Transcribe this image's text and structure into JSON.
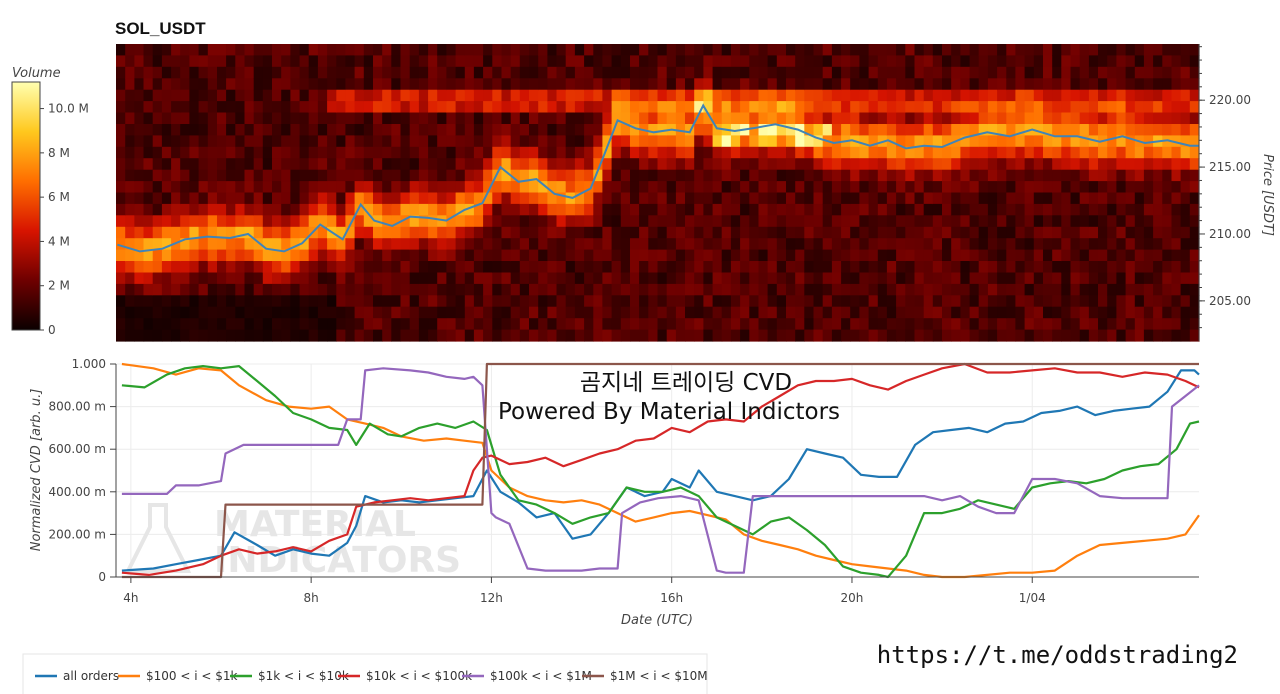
{
  "colors": {
    "heat_low": "#0b0000",
    "heat_high": "#ffffb0",
    "price_line": "#3f84b8",
    "all_orders": "#1f77b4",
    "s100_1k": "#ff7f0e",
    "s1k_10k": "#2ca02c",
    "s10k_100k": "#d62728",
    "s100k_1m": "#9467bd",
    "s1m_10m": "#8c564b"
  },
  "link": "https://t.me/oddstrading2",
  "chart_data": [
    {
      "type": "heatmap",
      "title": "SOL_USDT",
      "colorbar": {
        "label": "Volume",
        "ticks": [
          "10.0 M",
          "8 M",
          "6 M",
          "4 M",
          "2 M",
          "0"
        ],
        "tick_values": [
          10,
          8,
          6,
          4,
          2,
          0
        ],
        "range": [
          0,
          11.2
        ]
      },
      "ylabel": "Price [USDT]",
      "yticks": [
        "220.00",
        "215.00",
        "210.00",
        "205.00"
      ],
      "ytick_values": [
        220,
        215,
        210,
        205
      ],
      "ylim": [
        202,
        224.2
      ],
      "x_start_hour": 3.67,
      "x_end_hour": 27.7,
      "price_line": {
        "hours": [
          3.7,
          4.2,
          4.7,
          5.2,
          5.7,
          6.2,
          6.6,
          7.0,
          7.4,
          7.8,
          8.2,
          8.7,
          9.1,
          9.4,
          9.8,
          10.2,
          10.6,
          11.0,
          11.4,
          11.8,
          12.2,
          12.6,
          13.0,
          13.4,
          13.8,
          14.2,
          14.5,
          14.8,
          15.2,
          15.6,
          16.0,
          16.4,
          16.7,
          17.0,
          17.4,
          17.8,
          18.3,
          18.8,
          19.2,
          19.6,
          20.0,
          20.4,
          20.8,
          21.2,
          21.6,
          22.0,
          22.5,
          23.0,
          23.5,
          24.0,
          24.5,
          25.0,
          25.5,
          26.0,
          26.5,
          27.0,
          27.5,
          27.7
        ],
        "prices": [
          209.2,
          208.7,
          208.9,
          209.6,
          209.8,
          209.7,
          210.0,
          208.9,
          208.7,
          209.3,
          210.7,
          209.6,
          212.2,
          211.0,
          210.6,
          211.3,
          211.2,
          211.0,
          211.8,
          212.3,
          215.0,
          213.9,
          214.1,
          213.0,
          212.7,
          213.4,
          215.9,
          218.5,
          217.9,
          217.6,
          217.8,
          217.6,
          219.6,
          217.9,
          217.7,
          217.9,
          218.2,
          217.8,
          217.2,
          216.8,
          217.0,
          216.6,
          217.0,
          216.4,
          216.6,
          216.5,
          217.2,
          217.6,
          217.3,
          217.8,
          217.3,
          217.3,
          216.9,
          217.3,
          216.8,
          217.0,
          216.6,
          216.6
        ]
      }
    },
    {
      "type": "line",
      "ylabel": "Normalized CVD [arb. u.]",
      "xlabel": "Date (UTC)",
      "yticks": [
        "1.000",
        "800.00 m",
        "600.00 m",
        "400.00 m",
        "200.00 m",
        "0"
      ],
      "ytick_values": [
        1.0,
        0.8,
        0.6,
        0.4,
        0.2,
        0.0
      ],
      "xticks": [
        "4h",
        "8h",
        "12h",
        "16h",
        "20h",
        "1/04"
      ],
      "xtick_hours": [
        4,
        8,
        12,
        16,
        20,
        24
      ],
      "ylim": [
        0,
        1.0
      ],
      "xlim": [
        3.67,
        27.7
      ],
      "overlay_title": "곰지네 트레이딩 CVD",
      "overlay_subtitle": "Powered By Material Indictors",
      "watermark": [
        "MATERIAL",
        "INDICATORS"
      ],
      "series": [
        {
          "name": "all orders",
          "key": "all_orders",
          "x": [
            3.8,
            4.5,
            5.0,
            5.5,
            6.0,
            6.3,
            6.8,
            7.2,
            7.6,
            8.0,
            8.4,
            8.8,
            9.0,
            9.2,
            9.6,
            10.0,
            10.4,
            10.8,
            11.2,
            11.6,
            11.9,
            12.2,
            12.6,
            13.0,
            13.4,
            13.8,
            14.2,
            14.6,
            15.0,
            15.4,
            15.8,
            16.0,
            16.4,
            16.6,
            17.0,
            17.4,
            17.8,
            18.2,
            18.6,
            19.0,
            19.4,
            19.8,
            20.2,
            20.6,
            21.0,
            21.4,
            21.8,
            22.2,
            22.6,
            23.0,
            23.4,
            23.8,
            24.2,
            24.6,
            25.0,
            25.4,
            25.8,
            26.2,
            26.6,
            27.0,
            27.3,
            27.6,
            27.7
          ],
          "y": [
            0.03,
            0.04,
            0.06,
            0.08,
            0.1,
            0.21,
            0.15,
            0.1,
            0.13,
            0.11,
            0.1,
            0.16,
            0.24,
            0.38,
            0.35,
            0.36,
            0.35,
            0.36,
            0.37,
            0.38,
            0.5,
            0.4,
            0.35,
            0.28,
            0.3,
            0.18,
            0.2,
            0.3,
            0.42,
            0.38,
            0.4,
            0.46,
            0.42,
            0.5,
            0.4,
            0.38,
            0.36,
            0.38,
            0.46,
            0.6,
            0.58,
            0.56,
            0.48,
            0.47,
            0.47,
            0.62,
            0.68,
            0.69,
            0.7,
            0.68,
            0.72,
            0.73,
            0.77,
            0.78,
            0.8,
            0.76,
            0.78,
            0.79,
            0.8,
            0.87,
            0.97,
            0.97,
            0.95
          ]
        },
        {
          "name": "$100 < i < $1k",
          "key": "s100_1k",
          "x": [
            3.8,
            4.5,
            5.0,
            5.5,
            6.0,
            6.4,
            7.0,
            7.5,
            8.0,
            8.4,
            8.8,
            9.2,
            9.6,
            10.0,
            10.5,
            11.0,
            11.4,
            11.8,
            12.0,
            12.4,
            12.8,
            13.2,
            13.6,
            14.0,
            14.4,
            14.8,
            15.2,
            15.6,
            16.0,
            16.4,
            16.8,
            17.2,
            17.6,
            18.0,
            18.4,
            18.8,
            19.2,
            19.6,
            20.0,
            20.4,
            20.8,
            21.2,
            21.6,
            22.0,
            22.5,
            23.0,
            23.5,
            24.0,
            24.5,
            25.0,
            25.5,
            26.0,
            26.5,
            27.0,
            27.4,
            27.7
          ],
          "y": [
            1.0,
            0.98,
            0.95,
            0.98,
            0.97,
            0.9,
            0.83,
            0.8,
            0.79,
            0.8,
            0.74,
            0.72,
            0.7,
            0.66,
            0.64,
            0.65,
            0.64,
            0.63,
            0.5,
            0.42,
            0.38,
            0.36,
            0.35,
            0.36,
            0.34,
            0.3,
            0.26,
            0.28,
            0.3,
            0.31,
            0.29,
            0.27,
            0.2,
            0.17,
            0.15,
            0.13,
            0.1,
            0.08,
            0.06,
            0.05,
            0.04,
            0.03,
            0.01,
            0.0,
            0.0,
            0.01,
            0.02,
            0.02,
            0.03,
            0.1,
            0.15,
            0.16,
            0.17,
            0.18,
            0.2,
            0.29
          ]
        },
        {
          "name": "$1k < i < $10k",
          "key": "s1k_10k",
          "x": [
            3.8,
            4.3,
            4.8,
            5.2,
            5.6,
            6.0,
            6.4,
            6.8,
            7.2,
            7.6,
            8.0,
            8.4,
            8.8,
            9.0,
            9.3,
            9.7,
            10.0,
            10.4,
            10.8,
            11.2,
            11.6,
            11.9,
            12.2,
            12.6,
            13.0,
            13.4,
            13.8,
            14.2,
            14.6,
            15.0,
            15.4,
            15.8,
            16.2,
            16.6,
            17.0,
            17.4,
            17.8,
            18.2,
            18.6,
            19.0,
            19.4,
            19.8,
            20.2,
            20.6,
            20.8,
            21.2,
            21.6,
            22.0,
            22.4,
            22.8,
            23.2,
            23.6,
            24.0,
            24.4,
            24.8,
            25.2,
            25.6,
            26.0,
            26.4,
            26.8,
            27.2,
            27.5,
            27.7
          ],
          "y": [
            0.9,
            0.89,
            0.95,
            0.98,
            0.99,
            0.98,
            0.99,
            0.92,
            0.85,
            0.77,
            0.74,
            0.7,
            0.69,
            0.62,
            0.72,
            0.67,
            0.66,
            0.7,
            0.72,
            0.7,
            0.73,
            0.69,
            0.48,
            0.36,
            0.34,
            0.3,
            0.25,
            0.28,
            0.3,
            0.42,
            0.4,
            0.4,
            0.42,
            0.38,
            0.28,
            0.24,
            0.2,
            0.26,
            0.28,
            0.22,
            0.15,
            0.05,
            0.02,
            0.01,
            0.0,
            0.1,
            0.3,
            0.3,
            0.32,
            0.36,
            0.34,
            0.32,
            0.42,
            0.44,
            0.45,
            0.44,
            0.46,
            0.5,
            0.52,
            0.53,
            0.6,
            0.72,
            0.73
          ]
        },
        {
          "name": "$10k < i < $100k",
          "key": "s10k_100k",
          "x": [
            3.8,
            4.4,
            5.0,
            5.6,
            6.0,
            6.4,
            6.8,
            7.2,
            7.6,
            8.0,
            8.4,
            8.8,
            9.0,
            9.4,
            9.8,
            10.2,
            10.6,
            11.0,
            11.4,
            11.6,
            11.8,
            12.0,
            12.4,
            12.8,
            13.2,
            13.6,
            14.0,
            14.4,
            14.8,
            15.2,
            15.6,
            16.0,
            16.4,
            16.8,
            17.2,
            17.6,
            18.0,
            18.4,
            18.8,
            19.2,
            19.6,
            20.0,
            20.4,
            20.8,
            21.2,
            21.6,
            22.0,
            22.5,
            23.0,
            23.5,
            24.0,
            24.5,
            25.0,
            25.5,
            26.0,
            26.5,
            27.0,
            27.4,
            27.7
          ],
          "y": [
            0.02,
            0.01,
            0.03,
            0.06,
            0.1,
            0.13,
            0.11,
            0.12,
            0.14,
            0.12,
            0.17,
            0.2,
            0.33,
            0.35,
            0.36,
            0.37,
            0.36,
            0.37,
            0.38,
            0.5,
            0.56,
            0.57,
            0.53,
            0.54,
            0.56,
            0.52,
            0.55,
            0.58,
            0.6,
            0.64,
            0.65,
            0.7,
            0.68,
            0.73,
            0.74,
            0.73,
            0.8,
            0.85,
            0.9,
            0.92,
            0.92,
            0.93,
            0.9,
            0.88,
            0.92,
            0.95,
            0.98,
            1.0,
            0.96,
            0.96,
            0.97,
            0.98,
            0.96,
            0.96,
            0.94,
            0.96,
            0.95,
            0.92,
            0.89
          ]
        },
        {
          "name": "$100k < i < $1M",
          "key": "s100k_1m",
          "x": [
            3.8,
            4.8,
            5.0,
            5.5,
            6.0,
            6.1,
            6.5,
            7.0,
            7.8,
            8.6,
            8.8,
            9.1,
            9.2,
            9.6,
            10.2,
            10.6,
            11.0,
            11.4,
            11.6,
            11.8,
            12.0,
            12.1,
            12.4,
            12.8,
            13.2,
            13.6,
            14.0,
            14.4,
            14.8,
            14.9,
            15.3,
            15.7,
            16.2,
            16.6,
            17.0,
            17.2,
            17.6,
            17.8,
            18.2,
            18.6,
            19.0,
            19.4,
            20.0,
            20.8,
            21.2,
            21.6,
            22.0,
            22.4,
            22.8,
            23.2,
            23.6,
            24.0,
            24.5,
            25.0,
            25.5,
            26.0,
            26.5,
            27.0,
            27.1,
            27.4,
            27.7
          ],
          "y": [
            0.39,
            0.39,
            0.43,
            0.43,
            0.45,
            0.58,
            0.62,
            0.62,
            0.62,
            0.62,
            0.74,
            0.74,
            0.97,
            0.98,
            0.97,
            0.96,
            0.94,
            0.93,
            0.94,
            0.9,
            0.3,
            0.28,
            0.25,
            0.04,
            0.03,
            0.03,
            0.03,
            0.04,
            0.04,
            0.3,
            0.35,
            0.37,
            0.38,
            0.36,
            0.03,
            0.02,
            0.02,
            0.38,
            0.38,
            0.38,
            0.38,
            0.38,
            0.38,
            0.38,
            0.38,
            0.38,
            0.36,
            0.38,
            0.33,
            0.3,
            0.3,
            0.46,
            0.46,
            0.44,
            0.38,
            0.37,
            0.37,
            0.37,
            0.8,
            0.85,
            0.9
          ]
        },
        {
          "name": "$1M < i < $10M",
          "key": "s1m_10m",
          "x": [
            3.8,
            6.0,
            6.1,
            9.0,
            9.1,
            11.8,
            11.9,
            27.7
          ],
          "y": [
            0.0,
            0.0,
            0.34,
            0.34,
            0.34,
            0.34,
            1.0,
            1.0
          ]
        }
      ]
    }
  ]
}
